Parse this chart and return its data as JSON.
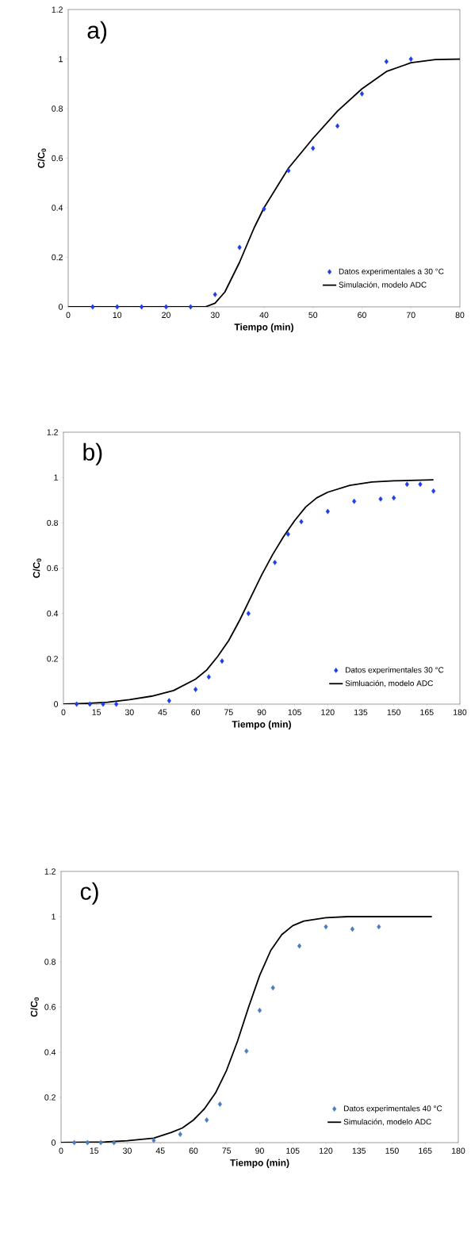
{
  "chart_data": [
    {
      "type": "scatter",
      "title": "a)",
      "xlabel": "Tiempo (min)",
      "ylabel": "C/C$_{0}$",
      "xlim": [
        0,
        80
      ],
      "xticks": [
        0,
        10,
        20,
        30,
        40,
        50,
        60,
        70,
        80
      ],
      "ylim": [
        0,
        1.2
      ],
      "yticks": [
        0,
        0.2,
        0.4,
        0.6,
        0.8,
        1,
        1.2
      ],
      "grid": false,
      "legend": "bottom right",
      "series": [
        {
          "name": "Datos experimentales a 30 °C",
          "marker": "diamond",
          "color": "#1f3fe6",
          "x": [
            5,
            10,
            15,
            20,
            25,
            30,
            35,
            40,
            45,
            50,
            55,
            60,
            65,
            70
          ],
          "values": [
            0,
            0,
            0,
            0,
            0,
            0.05,
            0.24,
            0.395,
            0.55,
            0.64,
            0.73,
            0.86,
            0.99,
            1.0
          ]
        },
        {
          "name": "Simulación, modelo ADC",
          "type": "line",
          "marker": "none",
          "color": "#000000",
          "x": [
            0,
            10,
            20,
            28,
            30,
            32,
            35,
            38,
            40,
            45,
            50,
            55,
            60,
            65,
            70,
            75,
            80
          ],
          "values": [
            0,
            0,
            0,
            0,
            0.015,
            0.06,
            0.18,
            0.32,
            0.4,
            0.56,
            0.68,
            0.79,
            0.88,
            0.95,
            0.985,
            0.998,
            1.0
          ]
        }
      ]
    },
    {
      "type": "scatter",
      "title": "b)",
      "xlabel": "Tiempo (min)",
      "ylabel": "C/C$_{0}$",
      "xlim": [
        0,
        180
      ],
      "xticks": [
        0,
        15,
        30,
        45,
        60,
        75,
        90,
        105,
        120,
        135,
        150,
        165,
        180
      ],
      "ylim": [
        0,
        1.2
      ],
      "yticks": [
        0,
        0.2,
        0.4,
        0.6,
        0.8,
        1,
        1.2
      ],
      "grid": false,
      "legend": "bottom right",
      "series": [
        {
          "name": "Datos experimentales 30 °C",
          "marker": "diamond",
          "color": "#1f3fe6",
          "x": [
            6,
            12,
            18,
            24,
            48,
            60,
            66,
            72,
            84,
            96,
            102,
            108,
            120,
            132,
            144,
            150,
            156,
            162,
            168
          ],
          "values": [
            0,
            0,
            0,
            0,
            0.015,
            0.065,
            0.12,
            0.19,
            0.4,
            0.625,
            0.75,
            0.805,
            0.85,
            0.895,
            0.905,
            0.91,
            0.97,
            0.97,
            0.94
          ]
        },
        {
          "name": "Simluación, modelo ADC",
          "type": "line",
          "marker": "none",
          "color": "#000000",
          "x": [
            0,
            10,
            20,
            30,
            40,
            50,
            60,
            65,
            70,
            75,
            80,
            85,
            90,
            95,
            100,
            105,
            110,
            115,
            120,
            130,
            140,
            150,
            168
          ],
          "values": [
            0,
            0.003,
            0.008,
            0.02,
            0.035,
            0.06,
            0.11,
            0.15,
            0.21,
            0.28,
            0.37,
            0.47,
            0.57,
            0.66,
            0.74,
            0.81,
            0.87,
            0.91,
            0.935,
            0.965,
            0.98,
            0.985,
            0.99
          ]
        }
      ]
    },
    {
      "type": "scatter",
      "title": "c)",
      "xlabel": "Tiempo (min)",
      "ylabel": "C/C$_{0}$",
      "xlim": [
        0,
        180
      ],
      "xticks": [
        0,
        15,
        30,
        45,
        60,
        75,
        90,
        105,
        120,
        135,
        150,
        165,
        180
      ],
      "ylim": [
        0,
        1.2
      ],
      "yticks": [
        0,
        0.2,
        0.4,
        0.6,
        0.8,
        1,
        1.2
      ],
      "grid": false,
      "legend": "bottom right",
      "series": [
        {
          "name": "Datos experimentales 40 °C",
          "marker": "diamond",
          "color": "#4a7ebb",
          "x": [
            6,
            12,
            18,
            24,
            42,
            54,
            66,
            72,
            84,
            90,
            96,
            108,
            120,
            132,
            144
          ],
          "values": [
            0,
            0,
            0,
            0,
            0.01,
            0.037,
            0.1,
            0.17,
            0.405,
            0.585,
            0.685,
            0.87,
            0.955,
            0.945,
            0.955
          ]
        },
        {
          "name": "Simulación, modelo ADC",
          "type": "line",
          "marker": "none",
          "color": "#000000",
          "x": [
            0,
            20,
            30,
            42,
            50,
            55,
            60,
            65,
            70,
            75,
            80,
            85,
            90,
            95,
            100,
            105,
            110,
            120,
            130,
            168
          ],
          "values": [
            0,
            0.003,
            0.008,
            0.02,
            0.045,
            0.065,
            0.1,
            0.15,
            0.22,
            0.32,
            0.45,
            0.6,
            0.74,
            0.85,
            0.92,
            0.96,
            0.98,
            0.995,
            1.0,
            1.0
          ]
        }
      ]
    }
  ]
}
